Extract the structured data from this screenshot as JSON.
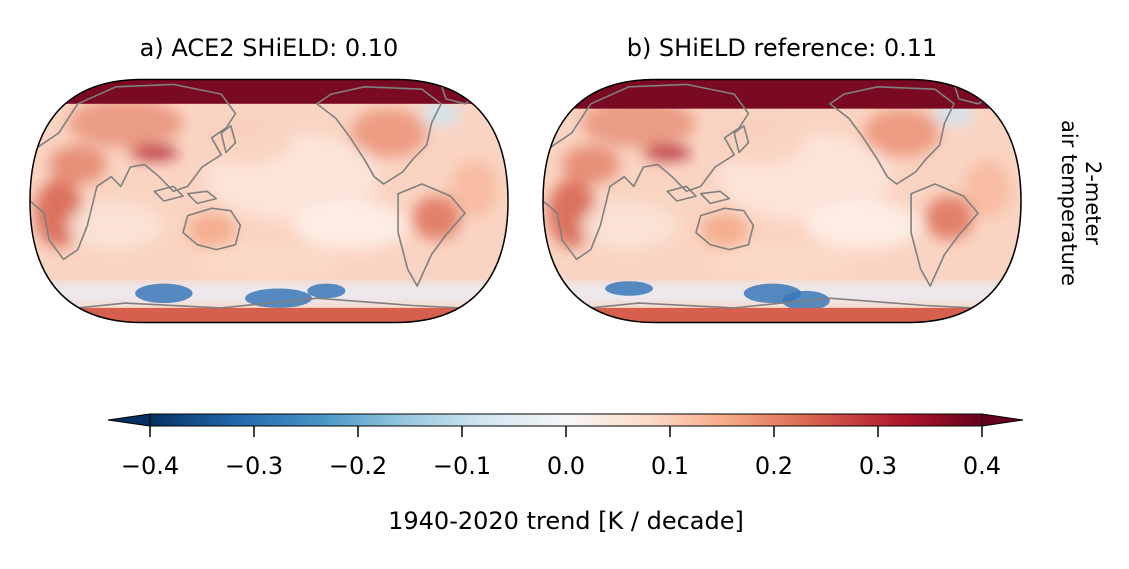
{
  "chart_data": [
    {
      "type": "heatmap",
      "panel": "a",
      "title": "a) ACE2 SHiELD: 0.10",
      "global_mean_trend": 0.1,
      "colorscale": "RdBu_r",
      "vmin": -0.4,
      "vmax": 0.4
    },
    {
      "type": "heatmap",
      "panel": "b",
      "title": "b) SHiELD reference: 0.11",
      "global_mean_trend": 0.11,
      "colorscale": "RdBu_r",
      "vmin": -0.4,
      "vmax": 0.4
    }
  ],
  "row_label": {
    "line1": "2-meter",
    "line2": "air temperature"
  },
  "colorbar": {
    "label": "1940-2020 trend [K / decade]",
    "ticks": [
      -0.4,
      -0.3,
      -0.2,
      -0.1,
      0.0,
      0.1,
      0.2,
      0.3,
      0.4
    ],
    "tick_labels": [
      "−0.4",
      "−0.3",
      "−0.2",
      "−0.1",
      "0.0",
      "0.1",
      "0.2",
      "0.3",
      "0.4"
    ],
    "extend": "both",
    "colors": [
      "#053061",
      "#2166ac",
      "#4393c3",
      "#92c5de",
      "#d1e5f0",
      "#f7f7f7",
      "#fddbc7",
      "#f4a582",
      "#d6604d",
      "#b2182b",
      "#67001f"
    ]
  },
  "colors": {
    "coastline": "#808080",
    "arctic": "#7a0a22",
    "antarctic_ocean": "#3a78b8"
  }
}
